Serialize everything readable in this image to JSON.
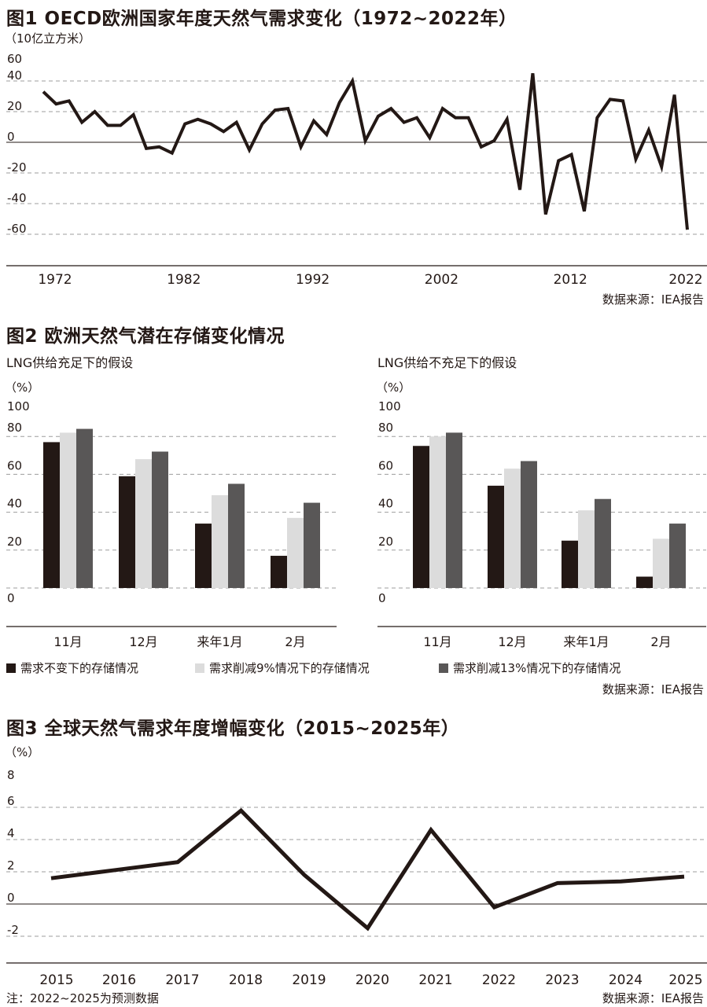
{
  "fig1": {
    "title": "图1 OECD欧洲国家年度天然气需求变化（1972~2022年）",
    "unit": "（10亿立方米）",
    "source": "数据来源：IEA报告"
  },
  "fig2": {
    "title": "图2 欧洲天然气潜在存储变化情况",
    "unit_left": "（%）",
    "unit_right": "（%）",
    "source": "数据来源：IEA报告"
  },
  "fig3": {
    "title": "图3 全球天然气需求年度增幅变化（2015~2025年）",
    "unit": "（%）",
    "note": "注：2022~2025为预测数据",
    "source": "数据来源：IEA报告"
  },
  "colors": {
    "dark": "#231815",
    "light": "#dcdcdc",
    "mid": "#595757",
    "grid": "#9d9d9d",
    "axis": "#231815"
  },
  "chart_data": [
    {
      "type": "line",
      "title": "图1 OECD欧洲国家年度天然气需求变化（1972~2022年）",
      "ylabel": "（10亿立方米）",
      "ylim": [
        -60,
        60
      ],
      "yticks": [
        "60",
        "40",
        "20",
        "0",
        "-20",
        "-40",
        "-60"
      ],
      "xtick_labels": [
        "1972",
        "1982",
        "1992",
        "2002",
        "2012",
        "2022"
      ],
      "x": [
        1972,
        1973,
        1974,
        1975,
        1976,
        1977,
        1978,
        1979,
        1980,
        1981,
        1982,
        1983,
        1984,
        1985,
        1986,
        1987,
        1988,
        1989,
        1990,
        1991,
        1992,
        1993,
        1994,
        1995,
        1996,
        1997,
        1998,
        1999,
        2000,
        2001,
        2002,
        2003,
        2004,
        2005,
        2006,
        2007,
        2008,
        2009,
        2010,
        2011,
        2012,
        2013,
        2014,
        2015,
        2016,
        2017,
        2018,
        2019,
        2020,
        2021,
        2022
      ],
      "series": [
        {
          "values": [
            33,
            25,
            27,
            13,
            20,
            11,
            11,
            18,
            -4,
            -3,
            -7,
            12,
            15,
            12,
            7,
            13,
            -5,
            12,
            21,
            22,
            -3,
            14,
            5,
            26,
            40,
            1,
            17,
            22,
            13,
            16,
            3,
            22,
            16,
            16,
            -3,
            1,
            15,
            -31,
            45,
            -47,
            -12,
            -8,
            -45,
            16,
            28,
            27,
            -11,
            8,
            -16,
            31,
            -57
          ]
        }
      ],
      "grid": true
    },
    {
      "type": "bar",
      "title": "LNG供给充足下的假设",
      "ylabel": "（%）",
      "ylim": [
        0,
        100
      ],
      "yticks": [
        "100",
        "80",
        "60",
        "40",
        "20",
        "0"
      ],
      "categories": [
        "11月",
        "12月",
        "来年1月",
        "2月"
      ],
      "series": [
        {
          "name": "需求不变下的存储情况",
          "values": [
            77,
            59,
            34,
            17
          ]
        },
        {
          "name": "需求削减9%情况下的存储情况",
          "values": [
            82,
            68,
            49,
            37
          ]
        },
        {
          "name": "需求削减13%情况下的存储情况",
          "values": [
            84,
            72,
            55,
            45
          ]
        }
      ],
      "grid": true
    },
    {
      "type": "bar",
      "title": "LNG供给不充足下的假设",
      "ylabel": "（%）",
      "ylim": [
        0,
        100
      ],
      "yticks": [
        "100",
        "80",
        "60",
        "40",
        "20",
        "0"
      ],
      "categories": [
        "11月",
        "12月",
        "来年1月",
        "2月"
      ],
      "series": [
        {
          "name": "需求不变下的存储情况",
          "values": [
            75,
            54,
            25,
            6
          ]
        },
        {
          "name": "需求削减9%情况下的存储情况",
          "values": [
            80,
            63,
            41,
            26
          ]
        },
        {
          "name": "需求削减13%情况下的存储情况",
          "values": [
            82,
            67,
            47,
            34
          ]
        }
      ],
      "grid": true
    },
    {
      "type": "line",
      "title": "图3 全球天然气需求年度增幅变化（2015~2025年）",
      "ylabel": "（%）",
      "ylim": [
        -2,
        8
      ],
      "yticks": [
        "8",
        "6",
        "4",
        "2",
        "0",
        "-2"
      ],
      "categories": [
        "2015",
        "2016",
        "2017",
        "2018",
        "2019",
        "2020",
        "2021",
        "2022",
        "2023",
        "2024",
        "2025"
      ],
      "series": [
        {
          "values": [
            1.6,
            2.1,
            2.6,
            5.8,
            1.8,
            -1.5,
            4.6,
            -0.2,
            1.3,
            1.4,
            1.7
          ]
        }
      ],
      "grid": true
    }
  ],
  "legend": {
    "items": [
      "需求不变下的存储情况",
      "需求削减9%情况下的存储情况",
      "需求削减13%情况下的存储情况"
    ]
  }
}
